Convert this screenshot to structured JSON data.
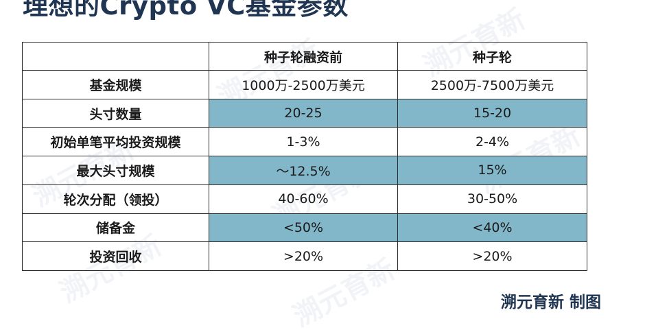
{
  "title": "理想的Crypto VC基金参数",
  "table": {
    "headers": [
      "",
      "种子轮融资前",
      "种子轮"
    ],
    "rows": [
      {
        "label": "基金规模",
        "values": [
          "1000万-2500万美元",
          "2500万-7500万美元"
        ],
        "highlight": false
      },
      {
        "label": "头寸数量",
        "values": [
          "20-25",
          "15-20"
        ],
        "highlight": true
      },
      {
        "label": "初始单笔平均投资规模",
        "values": [
          "1-3%",
          "2-4%"
        ],
        "highlight": false
      },
      {
        "label": "最大头寸规模",
        "values": [
          "～12.5%",
          "15%"
        ],
        "highlight": true
      },
      {
        "label": "轮次分配（领投）",
        "values": [
          "40-60%",
          "30-50%"
        ],
        "highlight": false
      },
      {
        "label": "储备金",
        "values": [
          "<50%",
          "<40%"
        ],
        "highlight": true
      },
      {
        "label": "投资回收",
        "values": [
          ">20%",
          ">20%"
        ],
        "highlight": false
      }
    ]
  },
  "credit": "溯元育新 制图",
  "watermark_text": "溯元育新",
  "colors": {
    "title": "#1f3551",
    "highlight": "#82b7c9",
    "border": "#2b2b2b"
  }
}
